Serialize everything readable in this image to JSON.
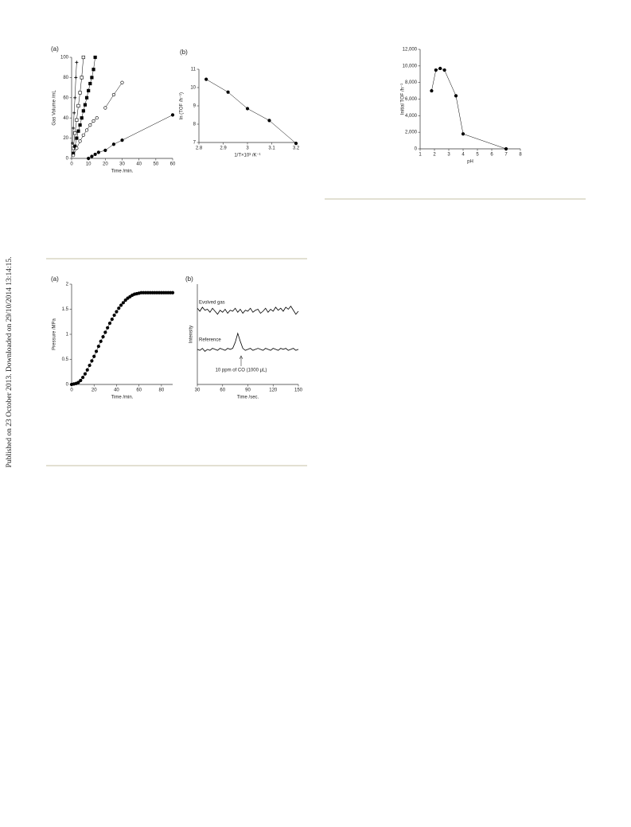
{
  "margin_note": "Published on 23 October 2013. Downloaded on 29/10/2014 13:14:15.",
  "chart_data": [
    {
      "type": "scatter",
      "panel_label": "(a)",
      "x_label": "Time /min.",
      "y_label": "Gas Volume /mL",
      "xlim": [
        0,
        60
      ],
      "xticks": [
        0,
        10,
        20,
        30,
        40,
        50,
        60
      ],
      "ylim": [
        0,
        100
      ],
      "yticks": [
        0,
        20,
        40,
        60,
        80,
        100
      ],
      "color": "#000000",
      "series": [
        {
          "marker": "plus",
          "x": [
            0.5,
            1,
            1.5,
            2,
            2.5,
            3
          ],
          "values": [
            15,
            30,
            45,
            60,
            80,
            95
          ]
        },
        {
          "marker": "open-square",
          "x": [
            1,
            2,
            3,
            4,
            5,
            6,
            7
          ],
          "values": [
            10,
            25,
            38,
            52,
            65,
            80,
            100
          ]
        },
        {
          "marker": "filled-square",
          "x": [
            1,
            2,
            3,
            4,
            5,
            6,
            7,
            8,
            9,
            10,
            11,
            12,
            13,
            14
          ],
          "values": [
            5,
            12,
            20,
            27,
            33,
            40,
            47,
            53,
            60,
            67,
            74,
            80,
            88,
            100
          ]
        },
        {
          "marker": "open-circle",
          "x": [
            1,
            3,
            5,
            7,
            9,
            11,
            13,
            15
          ],
          "values": [
            3,
            10,
            17,
            23,
            28,
            33,
            37,
            40
          ]
        },
        {
          "marker": "open-circle",
          "x": [
            20,
            25,
            30
          ],
          "values": [
            50,
            63,
            75
          ]
        },
        {
          "marker": "filled-circle",
          "x": [
            10,
            12,
            14,
            16,
            20,
            25,
            30,
            60
          ],
          "values": [
            0,
            2,
            4,
            6,
            8,
            14,
            18,
            43
          ]
        }
      ]
    },
    {
      "type": "scatter",
      "panel_label": "(b)",
      "x_label": "1/T×10³ /K⁻¹",
      "y_label": "ln (TOF /h⁻¹)",
      "xlim": [
        2.8,
        3.2
      ],
      "xticks": [
        2.8,
        2.9,
        3,
        3.1,
        3.2
      ],
      "ylim": [
        7,
        11
      ],
      "yticks": [
        7,
        8,
        9,
        10,
        11
      ],
      "color": "#000000",
      "series": [
        {
          "marker": "filled-circle",
          "x": [
            2.83,
            2.92,
            3.0,
            3.09,
            3.2
          ],
          "values": [
            10.45,
            9.75,
            8.85,
            8.2,
            6.95
          ]
        }
      ]
    },
    {
      "type": "scatter",
      "x_label": "pH",
      "y_label": "Initial TOF /h⁻¹",
      "xlim": [
        1,
        8
      ],
      "xticks": [
        1,
        2,
        3,
        4,
        5,
        6,
        7,
        8
      ],
      "ylim": [
        0,
        12000
      ],
      "yticks": [
        0,
        {
          "value": 2000,
          "label": "2,000"
        },
        {
          "value": 4000,
          "label": "4,000"
        },
        {
          "value": 6000,
          "label": "6,000"
        },
        {
          "value": 8000,
          "label": "8,000"
        },
        {
          "value": 10000,
          "label": "10,000"
        },
        {
          "value": 12000,
          "label": "12,000"
        }
      ],
      "color": "#000000",
      "series": [
        {
          "marker": "filled-circle",
          "x": [
            1.8,
            2.1,
            2.4,
            2.7,
            3.5,
            4.0,
            7.0
          ],
          "values": [
            7000,
            9500,
            9700,
            9500,
            6400,
            1800,
            0
          ]
        }
      ]
    },
    {
      "type": "scatter",
      "panel_label": "(a)",
      "x_label": "Time /min.",
      "y_label": "Pressure /MPa",
      "xlim": [
        0,
        90
      ],
      "xticks": [
        0,
        20,
        40,
        60,
        80
      ],
      "ylim": [
        0,
        2
      ],
      "yticks": [
        0,
        0.5,
        1,
        1.5,
        2
      ],
      "color": "#000000",
      "series": [
        {
          "marker": "filled-circle",
          "x": [
            0,
            2,
            4,
            6,
            8,
            10,
            12,
            14,
            16,
            18,
            20,
            22,
            24,
            26,
            28,
            30,
            32,
            34,
            36,
            38,
            40,
            42,
            44,
            46,
            48,
            50,
            52,
            54,
            56,
            58,
            60,
            62,
            64,
            66,
            68,
            70,
            72,
            74,
            76,
            78,
            80,
            82,
            84,
            86,
            88,
            90
          ],
          "values": [
            0,
            0.01,
            0.02,
            0.04,
            0.08,
            0.14,
            0.21,
            0.29,
            0.38,
            0.47,
            0.56,
            0.66,
            0.76,
            0.86,
            0.95,
            1.04,
            1.13,
            1.22,
            1.3,
            1.38,
            1.45,
            1.52,
            1.58,
            1.63,
            1.68,
            1.72,
            1.75,
            1.78,
            1.8,
            1.81,
            1.82,
            1.83,
            1.83,
            1.83,
            1.83,
            1.83,
            1.83,
            1.83,
            1.83,
            1.83,
            1.83,
            1.83,
            1.83,
            1.83,
            1.83,
            1.83
          ]
        }
      ]
    },
    {
      "type": "line",
      "panel_label": "(b)",
      "x_label": "Time /sec.",
      "y_label": "Intensity",
      "xlim": [
        30,
        150
      ],
      "xticks": [
        30,
        60,
        90,
        120,
        150
      ],
      "ylim": [
        0,
        10
      ],
      "color": "#000000",
      "annotations": [
        {
          "text": "Evolved gas"
        },
        {
          "text": "Reference"
        },
        {
          "text": "10 ppm of CO (1000 µL)"
        }
      ],
      "x": [
        30,
        33,
        36,
        39,
        42,
        45,
        48,
        51,
        54,
        57,
        60,
        63,
        66,
        69,
        72,
        75,
        78,
        81,
        84,
        87,
        90,
        93,
        96,
        99,
        102,
        105,
        108,
        111,
        114,
        117,
        120,
        123,
        126,
        129,
        132,
        135,
        138,
        141,
        144,
        147,
        150
      ],
      "series": [
        {
          "values": [
            7.6,
            7.3,
            7.7,
            7.4,
            7.5,
            7.2,
            7.6,
            7.3,
            7.0,
            7.4,
            7.2,
            7.5,
            7.1,
            7.4,
            7.3,
            7.6,
            7.2,
            7.5,
            7.1,
            7.4,
            7.3,
            7.6,
            7.2,
            7.4,
            7.5,
            7.1,
            7.3,
            7.6,
            7.2,
            7.5,
            7.3,
            7.7,
            7.4,
            7.6,
            7.3,
            7.7,
            7.5,
            7.8,
            7.4,
            7.0,
            7.3
          ]
        },
        {
          "values": [
            3.5,
            3.4,
            3.6,
            3.3,
            3.5,
            3.4,
            3.6,
            3.5,
            3.4,
            3.6,
            3.5,
            3.4,
            3.6,
            3.5,
            3.6,
            4.2,
            5.1,
            4.3,
            3.6,
            3.4,
            3.5,
            3.6,
            3.4,
            3.5,
            3.6,
            3.5,
            3.4,
            3.6,
            3.5,
            3.4,
            3.6,
            3.5,
            3.4,
            3.6,
            3.5,
            3.6,
            3.4,
            3.5,
            3.6,
            3.4,
            3.5
          ]
        }
      ]
    }
  ]
}
